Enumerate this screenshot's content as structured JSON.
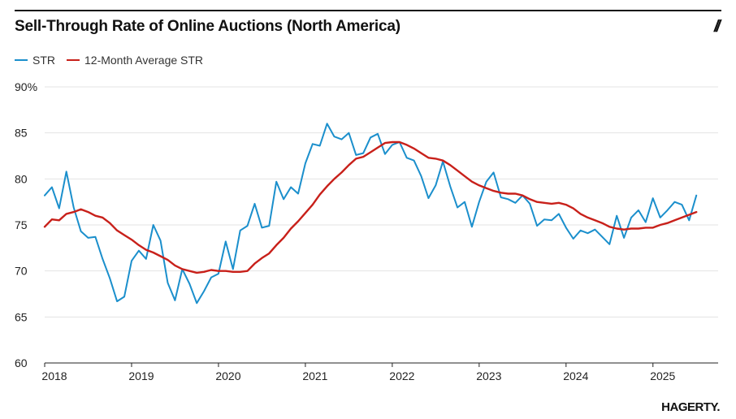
{
  "header": {
    "title": "Sell-Through Rate of Online Auctions (North America)",
    "logo_mark": "//"
  },
  "colors": {
    "str": "#1b8fcc",
    "avg": "#c8201a",
    "grid": "#e3e3e3",
    "axis": "#222222",
    "text": "#222222"
  },
  "brand": {
    "name": "HAGERTY."
  },
  "chart_data": {
    "type": "line",
    "title": "Sell-Through Rate of Online Auctions (North America)",
    "xlabel": "",
    "ylabel": "",
    "ylim": [
      60,
      90
    ],
    "yticks": [
      60,
      65,
      70,
      75,
      80,
      85,
      90
    ],
    "ytick_labels": [
      "60",
      "65",
      "70",
      "75",
      "80",
      "85",
      "90%"
    ],
    "xlim": [
      2018.0,
      2025.75
    ],
    "xticks": [
      2018,
      2019,
      2020,
      2021,
      2022,
      2023,
      2024,
      2025
    ],
    "xtick_labels": [
      "2018",
      "2019",
      "2020",
      "2021",
      "2022",
      "2023",
      "2024",
      "2025"
    ],
    "grid": true,
    "legend_position": "top-left",
    "series": [
      {
        "name": "STR",
        "x_start": 2018.0,
        "x_step": 0.08333,
        "values": [
          78.2,
          79.1,
          76.8,
          80.8,
          76.9,
          74.3,
          73.6,
          73.7,
          71.3,
          69.2,
          66.7,
          67.2,
          71.1,
          72.2,
          71.3,
          75.0,
          73.3,
          68.7,
          66.8,
          70.2,
          68.6,
          66.5,
          67.8,
          69.3,
          69.7,
          73.2,
          70.2,
          74.4,
          74.9,
          77.3,
          74.7,
          74.9,
          79.7,
          77.8,
          79.1,
          78.4,
          81.7,
          83.8,
          83.6,
          86.0,
          84.6,
          84.3,
          85.0,
          82.6,
          82.8,
          84.5,
          84.9,
          82.7,
          83.7,
          84.0,
          82.3,
          82.0,
          80.3,
          77.9,
          79.3,
          81.9,
          79.2,
          76.9,
          77.5,
          74.8,
          77.5,
          79.7,
          80.7,
          78.0,
          77.8,
          77.4,
          78.2,
          77.3,
          74.9,
          75.6,
          75.5,
          76.2,
          74.7,
          73.5,
          74.4,
          74.1,
          74.5,
          73.7,
          72.9,
          76.0,
          73.6,
          75.8,
          76.6,
          75.3,
          77.9,
          75.8,
          76.6,
          77.5,
          77.2,
          75.5,
          78.2
        ]
      },
      {
        "name": "12-Month Average STR",
        "x_start": 2018.0,
        "x_step": 0.08333,
        "values": [
          74.8,
          75.6,
          75.5,
          76.2,
          76.4,
          76.7,
          76.4,
          76.0,
          75.8,
          75.2,
          74.4,
          73.9,
          73.4,
          72.8,
          72.3,
          72.0,
          71.6,
          71.2,
          70.6,
          70.2,
          70.0,
          69.8,
          69.9,
          70.1,
          70.0,
          70.0,
          69.9,
          69.9,
          70.0,
          70.8,
          71.4,
          71.9,
          72.8,
          73.6,
          74.6,
          75.4,
          76.3,
          77.2,
          78.3,
          79.2,
          80.0,
          80.7,
          81.5,
          82.2,
          82.4,
          82.9,
          83.4,
          83.9,
          84.0,
          84.0,
          83.7,
          83.3,
          82.8,
          82.3,
          82.2,
          82.0,
          81.5,
          80.9,
          80.3,
          79.7,
          79.3,
          79.0,
          78.7,
          78.5,
          78.4,
          78.4,
          78.2,
          77.8,
          77.5,
          77.4,
          77.3,
          77.4,
          77.2,
          76.8,
          76.2,
          75.8,
          75.5,
          75.2,
          74.8,
          74.6,
          74.5,
          74.6,
          74.6,
          74.7,
          74.7,
          75.0,
          75.2,
          75.5,
          75.8,
          76.1,
          76.4
        ]
      }
    ]
  }
}
